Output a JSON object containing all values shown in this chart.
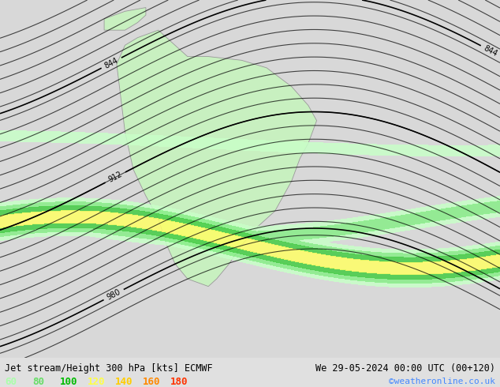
{
  "title_left": "Jet stream/Height 300 hPa [kts] ECMWF",
  "title_right": "We 29-05-2024 00:00 UTC (00+120)",
  "credit": "©weatheronline.co.uk",
  "bg_color": "#e0e0e0",
  "land_color": "#c8f0c0",
  "border_color": "#999999",
  "legend_values": [
    "60",
    "80",
    "100",
    "120",
    "140",
    "160",
    "180"
  ],
  "legend_colors": [
    "#aaffaa",
    "#66dd66",
    "#00bb00",
    "#ffff44",
    "#ffcc00",
    "#ff8800",
    "#ff3300"
  ],
  "contour_color": "#000000",
  "figsize": [
    6.34,
    4.9
  ],
  "dpi": 100,
  "ocean_color": "#d8d8d8",
  "title_fontsize": 8.5,
  "legend_fontsize": 9,
  "credit_color": "#4488ff",
  "title_color": "#000000",
  "lon_min": -110,
  "lon_max": 10,
  "lat_min": -75,
  "lat_max": 20,
  "jet_levels": [
    60,
    80,
    100,
    120,
    140,
    160,
    180
  ],
  "jet_colors_hex": [
    "#bbffbb",
    "#88ee88",
    "#44cc44",
    "#ffff66",
    "#ffcc00",
    "#ff8800",
    "#ff3300"
  ]
}
